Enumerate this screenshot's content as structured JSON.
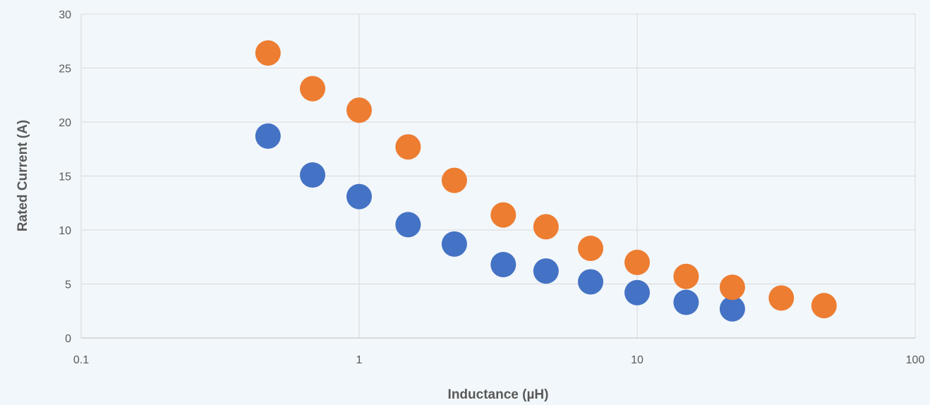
{
  "chart_data": {
    "type": "scatter",
    "title": "",
    "xlabel": "Inductance (µH)",
    "ylabel": "Rated Current (A)",
    "x_scale": "log",
    "xlim": [
      0.1,
      100
    ],
    "ylim": [
      0,
      30
    ],
    "x_ticks": [
      "0.1",
      "1",
      "10",
      "100"
    ],
    "y_ticks": [
      "0",
      "5",
      "10",
      "15",
      "20",
      "25",
      "30"
    ],
    "grid": true,
    "legend": "none",
    "series": [
      {
        "color": "#4472c4",
        "points": [
          [
            0.47,
            18.7
          ],
          [
            0.68,
            15.1
          ],
          [
            1.0,
            13.1
          ],
          [
            1.5,
            10.5
          ],
          [
            2.2,
            8.7
          ],
          [
            3.3,
            6.8
          ],
          [
            4.7,
            6.2
          ],
          [
            6.8,
            5.2
          ],
          [
            10,
            4.2
          ],
          [
            15,
            3.3
          ],
          [
            22,
            2.7
          ]
        ]
      },
      {
        "color": "#ed7d31",
        "points": [
          [
            0.47,
            26.4
          ],
          [
            0.68,
            23.1
          ],
          [
            1.0,
            21.1
          ],
          [
            1.5,
            17.7
          ],
          [
            2.2,
            14.6
          ],
          [
            3.3,
            11.4
          ],
          [
            4.7,
            10.3
          ],
          [
            6.8,
            8.3
          ],
          [
            10,
            7.0
          ],
          [
            15,
            5.7
          ],
          [
            22,
            4.7
          ],
          [
            33,
            3.7
          ],
          [
            47,
            3.0
          ]
        ]
      }
    ]
  },
  "colors": {
    "background": "#f2f7fb",
    "grid": "#d9d9d9",
    "axis": "#bfbfbf",
    "text": "#595959"
  }
}
